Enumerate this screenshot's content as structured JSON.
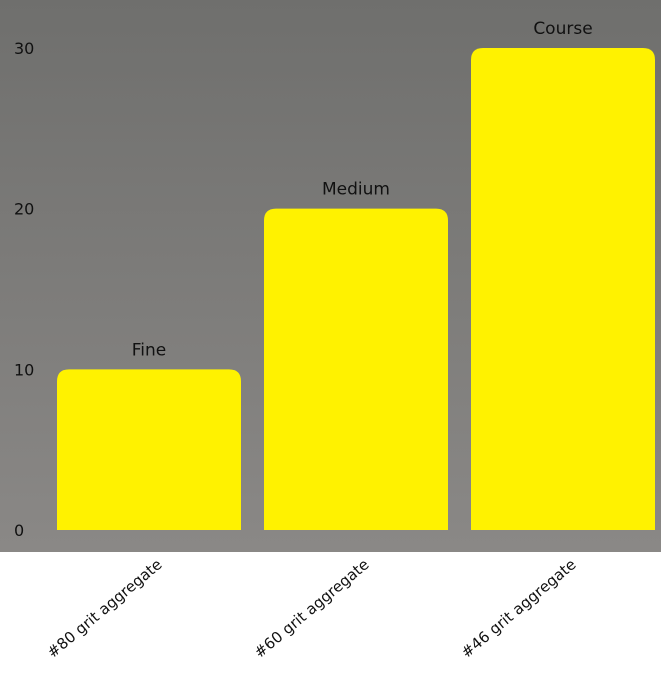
{
  "colors": {
    "background_top": "#6f6f6d",
    "background_bottom": "#8a8886",
    "bar": "#fff200"
  },
  "chart_data": {
    "type": "bar",
    "title": "",
    "xlabel": "",
    "ylabel": "",
    "categories": [
      "#80 grit aggregate",
      "#60 grit aggregate",
      "#46 grit aggregate"
    ],
    "values": [
      10,
      20,
      30
    ],
    "data_labels": [
      "Fine",
      "Medium",
      "Course"
    ],
    "yticks": [
      0,
      10,
      20,
      30
    ],
    "ylim": [
      0,
      30
    ],
    "grid": false,
    "legend": "none"
  }
}
